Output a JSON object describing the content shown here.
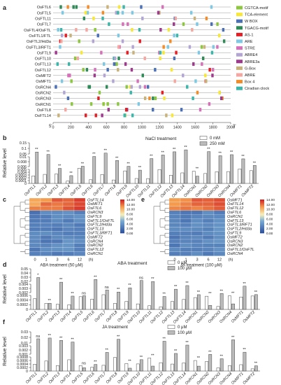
{
  "panels": {
    "a": {
      "label": "a",
      "genes": [
        "OsFTL6",
        "OsFTL5",
        "OsFTL11",
        "OsFTL7",
        "OsFTL4/OsFTL",
        "OsFTL1/FTL",
        "OsFTL2/Hd3a",
        "OsFTL3/RFT1",
        "OsFTL9",
        "OsFTL10",
        "OsFTL13",
        "OsFTL12",
        "OsMFT2",
        "OsMFT1",
        "OsRCN4",
        "OsRCN2",
        "OsRCN3",
        "OsRCN1",
        "OsFTL8",
        "OsFTL14"
      ],
      "axis_ticks": [
        "0",
        "200",
        "400",
        "600",
        "800",
        "1000",
        "1200",
        "1400",
        "1600",
        "1800",
        "2000"
      ],
      "end_5": "5'",
      "end_3": "3'",
      "legend": [
        {
          "name": "CGTCA-motif",
          "color": "#8dc63f"
        },
        {
          "name": "TCA-element",
          "color": "#f7e838"
        },
        {
          "name": "W BOX",
          "color": "#4a6fb5"
        },
        {
          "name": "TGACG-motif",
          "color": "#2e8b57"
        },
        {
          "name": "AS-1",
          "color": "#e31e24"
        },
        {
          "name": "ARE",
          "color": "#7ec8e3"
        },
        {
          "name": "STRE",
          "color": "#d670b8"
        },
        {
          "name": "ABRE4",
          "color": "#b2a5d3"
        },
        {
          "name": "ABRE3a",
          "color": "#9e3a8c"
        },
        {
          "name": "G-Box",
          "color": "#c8b27a"
        },
        {
          "name": "ABRE",
          "color": "#f6a6a0"
        },
        {
          "name": "Box 4",
          "color": "#f28c28"
        },
        {
          "name": "Ciradian clock",
          "color": "#3cb6a8"
        }
      ]
    },
    "b": {
      "label": "b",
      "title": "NaCl treatment",
      "ylabel": "Relative level",
      "legend": [
        "0 mM",
        "250 mM"
      ],
      "yticks_top": [
        "0.15",
        "0.1",
        "0.05"
      ],
      "yticks_mid": [
        "0.01",
        "0.008",
        "0.006"
      ],
      "yticks_bot": [
        "0.005",
        "0.004",
        "0.0003",
        "0.0002",
        "0.0001",
        "0"
      ],
      "genes": [
        "OsFTL1",
        "OsFTL2",
        "OsFTL3",
        "OsFTL4",
        "OsFTL5",
        "OsFTL6",
        "OsFTL7",
        "OsFTL8",
        "OsFTL9",
        "OsFTL10",
        "OsFTL11",
        "OsFTL12",
        "OsFTL13",
        "OsFTL14",
        "OsRCN1",
        "OsRCN2",
        "OsRCN3",
        "OsRCN4",
        "OsMFT1",
        "OsMFT2"
      ],
      "sig": [
        "**",
        "**",
        "**",
        "**",
        "**",
        "**",
        "**",
        "**",
        "**",
        "**",
        "**",
        "**",
        "**",
        "**",
        "**",
        "**",
        "**",
        "**",
        "**",
        "**"
      ]
    },
    "c": {
      "label": "c",
      "xlabel": "ABA treatment (50 μM)",
      "xticks": [
        "0",
        "1",
        "3",
        "6",
        "12",
        "(h)"
      ],
      "rows": [
        "OsFTL14",
        "OsMFT1",
        "OsFTL6",
        "OsRCN3",
        "OsFTL9",
        "OsFTL1/OsFTL",
        "OsFTL2/Hd3a",
        "OsFTL13",
        "OsFTL3/RFT1",
        "OsMFT2",
        "OsRCN4",
        "OsRCN2",
        "OsFTL12",
        "OsRCN1"
      ],
      "scale": [
        "14.00",
        "12.00",
        "10.00",
        "8.00",
        "6.00",
        "4.00",
        "2.00",
        "0.00"
      ]
    },
    "e": {
      "label": "e",
      "xlabel": "JA treatment (100 μM)",
      "xticks": [
        "0",
        "1",
        "3",
        "6",
        "12",
        "(h)"
      ],
      "rows": [
        "OsMFT1",
        "OsFTL14",
        "OsFTL12",
        "OsFTL6",
        "OsRCN1",
        "OsFTL13",
        "OsFTL3/RFT1",
        "OsFTL2/Hd3a",
        "OsFTL9",
        "OsMFT2",
        "OsRCN3",
        "OsRCN2",
        "OsFTL1/OsFTL",
        "OsRCN4"
      ],
      "scale": [
        "14.00",
        "12.00",
        "10.00",
        "8.00",
        "6.00",
        "4.00",
        "2.00",
        "0.00"
      ]
    },
    "d": {
      "label": "d",
      "title": "ABA treatment",
      "ylabel": "Relative level",
      "legend": [
        "0 μM",
        "100 μM"
      ],
      "yticks_top": [
        "0.05",
        "0.04",
        "0.03",
        "0.02"
      ],
      "yticks_mid": [
        "0.004",
        "0.003",
        "0.002"
      ],
      "yticks_bot": [
        "0.0006",
        "0.0004",
        "0.0002",
        "0"
      ],
      "genes": [
        "OsFTL1",
        "OsFTL2",
        "OsFTL3",
        "OsFTL4",
        "OsFTL5",
        "OsFTL6",
        "OsFTL7",
        "OsFTL8",
        "OsFTL9",
        "OsFTL10",
        "OsFTL11",
        "OsFTL12",
        "OsFTL13",
        "OsFTL14",
        "OsRCN1",
        "OsRCN2",
        "OsRCN3",
        "OsRCN4",
        "OsMFT1",
        "OsMFT2"
      ],
      "sig": [
        "*",
        "**",
        "**",
        "**",
        "ns",
        "**",
        "ns",
        "**",
        "**",
        "ns",
        "**",
        "**",
        "**",
        "**",
        "**",
        "**",
        "**",
        "**",
        "**",
        "**"
      ]
    },
    "f": {
      "label": "f",
      "title": "JA treatment",
      "ylabel": "Relative level",
      "legend": [
        "0 μM",
        "100 μM"
      ],
      "yticks_top": [
        "0.03",
        "0.02",
        "0.01"
      ],
      "yticks_mid": [
        "0.003",
        "0.002",
        "0.001"
      ],
      "yticks_bot": [
        "0.0008",
        "0.0006",
        "0.0004",
        "0.0002",
        "0"
      ],
      "genes": [
        "OsFTL1",
        "OsFTL2",
        "OsFTL3",
        "OsFTL4",
        "OsFTL5",
        "OsFTL6",
        "OsFTL7",
        "OsFTL8",
        "OsFTL9",
        "OsFTL10",
        "OsFTL11",
        "OsFTL12",
        "OsFTL13",
        "OsFTL14",
        "OsRCN1",
        "OsRCN2",
        "OsRCN3",
        "OsRCN4",
        "OsMFT1",
        "OsMFT2"
      ],
      "sig": [
        "ns",
        "**",
        "**",
        "**",
        "ns",
        "**",
        "**",
        "**",
        "**",
        "**",
        "**",
        "**",
        "**",
        "**",
        "**",
        "**",
        "**",
        "**",
        "**",
        "**"
      ]
    }
  }
}
